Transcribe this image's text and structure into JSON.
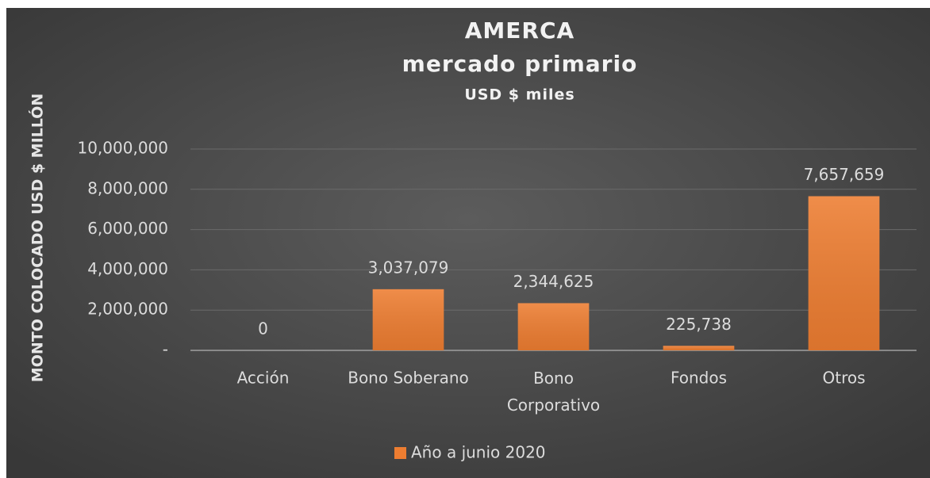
{
  "chart_data": {
    "type": "bar",
    "title": "AMERCA",
    "subtitle": "mercado primario",
    "units_label": "USD $ miles",
    "ylabel": "MONTO COLOCADO USD $ MILLÓN",
    "categories": [
      "Acción",
      "Bono Soberano",
      "Bono Corporativo",
      "Fondos",
      "Otros"
    ],
    "series": [
      {
        "name": "Año a junio 2020",
        "color": "#ed7d31",
        "values": [
          0,
          3037079,
          2344625,
          225738,
          7657659
        ],
        "value_labels": [
          "0",
          "3,037,079",
          "2,344,625",
          "225,738",
          "7,657,659"
        ]
      }
    ],
    "ylim": [
      0,
      10000000
    ],
    "yticks": [
      {
        "value": 0,
        "label": "-"
      },
      {
        "value": 2000000,
        "label": "2,000,000"
      },
      {
        "value": 4000000,
        "label": "4,000,000"
      },
      {
        "value": 6000000,
        "label": "6,000,000"
      },
      {
        "value": 8000000,
        "label": "8,000,000"
      },
      {
        "value": 10000000,
        "label": "10,000,000"
      }
    ],
    "grid": true,
    "legend": "bottom"
  }
}
